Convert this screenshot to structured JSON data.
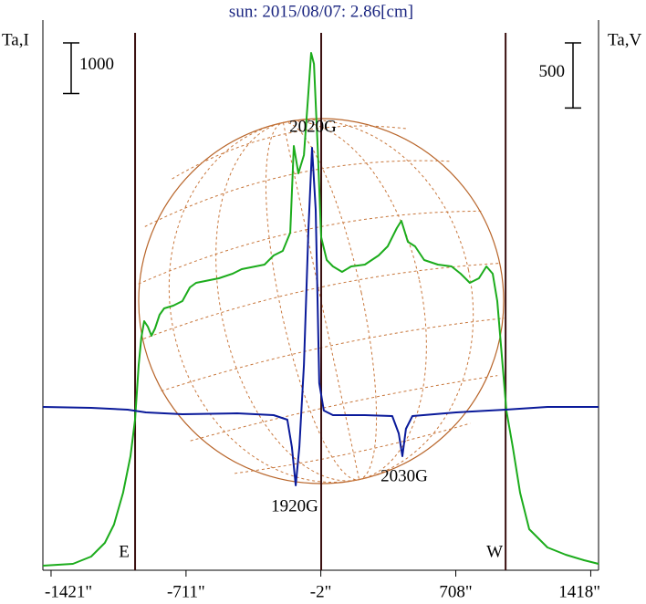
{
  "chart_data": {
    "type": "line",
    "title": "sun: 2015/08/07: 2.86[cm]",
    "ylabel": "Ta,I",
    "y2label": "Ta,V",
    "xlim": [
      -1464,
      1459
    ],
    "xticks": [
      {
        "value": -1421,
        "label": "-1421\""
      },
      {
        "value": -711,
        "label": "-711\""
      },
      {
        "value": -2,
        "label": "-2\""
      },
      {
        "value": 708,
        "label": "708\""
      },
      {
        "value": 1418,
        "label": "1418\""
      }
    ],
    "ylim": [
      0,
      10854
    ],
    "y2lim": [
      -1246,
      2975
    ],
    "scale_bars": [
      {
        "axis": "y",
        "value": 1000
      },
      {
        "axis": "y2",
        "value": 500
      }
    ],
    "vlines": [
      {
        "value": -979,
        "label": "E"
      },
      {
        "value": 0
      },
      {
        "value": 970,
        "label": "W"
      }
    ],
    "annotations": [
      "2020G",
      "1920G",
      "2030G"
    ],
    "series": [
      {
        "name": "I",
        "color": "#1cac1c",
        "axis": "y",
        "x": [
          -1464,
          -1306,
          -1210,
          -1138,
          -1090,
          -1042,
          -1003,
          -979,
          -960,
          -946,
          -931,
          -912,
          -893,
          -874,
          -850,
          -826,
          -778,
          -730,
          -691,
          -658,
          -610,
          -538,
          -466,
          -418,
          -346,
          -298,
          -250,
          -202,
          -163,
          -144,
          -120,
          -91,
          -67,
          -53,
          -38,
          -19,
          0,
          29,
          62,
          110,
          158,
          230,
          302,
          350,
          398,
          422,
          456,
          494,
          542,
          614,
          686,
          734,
          782,
          830,
          869,
          902,
          926,
          950,
          974,
          1008,
          1046,
          1094,
          1190,
          1286,
          1382,
          1459
        ],
        "values": [
          90,
          126,
          270,
          540,
          900,
          1530,
          2250,
          2970,
          4050,
          4590,
          4914,
          4806,
          4626,
          4770,
          5040,
          5166,
          5220,
          5310,
          5580,
          5670,
          5706,
          5760,
          5850,
          5940,
          5994,
          6030,
          6210,
          6300,
          6660,
          8370,
          7830,
          8190,
          9450,
          10206,
          9990,
          8370,
          6570,
          6120,
          5994,
          5886,
          5994,
          6030,
          6210,
          6390,
          6750,
          6894,
          6480,
          6390,
          6120,
          6030,
          5994,
          5850,
          5670,
          5760,
          5994,
          5850,
          5310,
          4230,
          3150,
          2430,
          1530,
          810,
          450,
          306,
          198,
          126
        ]
      },
      {
        "name": "V",
        "color": "#0a1a9a",
        "axis": "y2",
        "x": [
          -1464,
          -1210,
          -1018,
          -922,
          -730,
          -442,
          -250,
          -178,
          -154,
          -134,
          -115,
          -91,
          -67,
          -48,
          -29,
          -10,
          14,
          62,
          230,
          374,
          408,
          427,
          446,
          480,
          710,
          970,
          1190,
          1459
        ],
        "values": [
          7,
          0,
          -14,
          -35,
          -49,
          -42,
          -56,
          -91,
          -301,
          -595,
          -301,
          329,
          1379,
          1995,
          1519,
          189,
          -21,
          -56,
          -56,
          -63,
          -196,
          -371,
          -161,
          -63,
          -35,
          -14,
          7,
          7
        ]
      }
    ]
  }
}
